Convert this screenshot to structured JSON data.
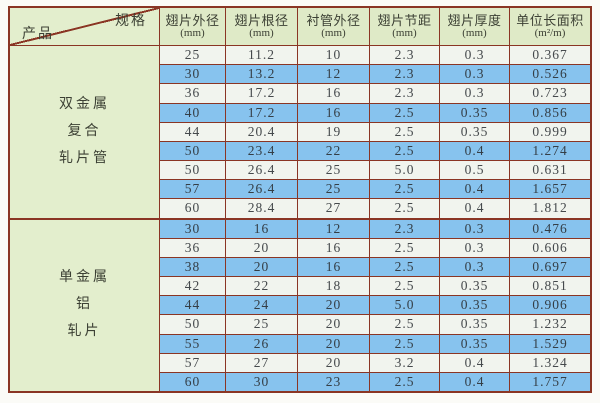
{
  "colors": {
    "border": "#8a3524",
    "header_bg": "#dfeac7",
    "product_bg": "#e3eecd",
    "row_blue": "#87c3ee",
    "row_white": "#f1f4ee"
  },
  "table": {
    "corner": {
      "spec": "规格",
      "product": "产品"
    },
    "columns": [
      {
        "title": "翅片外径",
        "unit": "(mm)"
      },
      {
        "title": "翅片根径",
        "unit": "(mm)"
      },
      {
        "title": "衬管外径",
        "unit": "(mm)"
      },
      {
        "title": "翅片节距",
        "unit": "(mm)"
      },
      {
        "title": "翅片厚度",
        "unit": "(mm)"
      },
      {
        "title": "单位长面积",
        "unit": "(m²/m)"
      }
    ],
    "groups": [
      {
        "product_lines": [
          "双金属",
          "复合",
          "轧片管"
        ],
        "rows": [
          [
            "25",
            "11.2",
            "10",
            "2.3",
            "0.3",
            "0.367"
          ],
          [
            "30",
            "13.2",
            "12",
            "2.3",
            "0.3",
            "0.526"
          ],
          [
            "36",
            "17.2",
            "16",
            "2.3",
            "0.3",
            "0.723"
          ],
          [
            "40",
            "17.2",
            "16",
            "2.5",
            "0.35",
            "0.856"
          ],
          [
            "44",
            "20.4",
            "19",
            "2.5",
            "0.35",
            "0.999"
          ],
          [
            "50",
            "23.4",
            "22",
            "2.5",
            "0.4",
            "1.274"
          ],
          [
            "50",
            "26.4",
            "25",
            "5.0",
            "0.5",
            "0.631"
          ],
          [
            "57",
            "26.4",
            "25",
            "2.5",
            "0.4",
            "1.657"
          ],
          [
            "60",
            "28.4",
            "27",
            "2.5",
            "0.4",
            "1.812"
          ]
        ]
      },
      {
        "product_lines": [
          "单金属",
          "铝",
          "轧片"
        ],
        "rows": [
          [
            "30",
            "16",
            "12",
            "2.3",
            "0.3",
            "0.476"
          ],
          [
            "36",
            "20",
            "16",
            "2.5",
            "0.3",
            "0.606"
          ],
          [
            "38",
            "20",
            "16",
            "2.5",
            "0.3",
            "0.697"
          ],
          [
            "42",
            "22",
            "18",
            "2.5",
            "0.35",
            "0.851"
          ],
          [
            "44",
            "24",
            "20",
            "5.0",
            "0.35",
            "0.906"
          ],
          [
            "50",
            "25",
            "20",
            "2.5",
            "0.35",
            "1.232"
          ],
          [
            "55",
            "26",
            "20",
            "2.5",
            "0.35",
            "1.529"
          ],
          [
            "57",
            "27",
            "20",
            "3.2",
            "0.4",
            "1.324"
          ],
          [
            "60",
            "30",
            "23",
            "2.5",
            "0.4",
            "1.757"
          ]
        ]
      }
    ]
  },
  "chart_data": {
    "type": "table",
    "title": "",
    "columns": [
      "产品",
      "翅片外径(mm)",
      "翅片根径(mm)",
      "衬管外径(mm)",
      "翅片节距(mm)",
      "翅片厚度(mm)",
      "单位长面积(m²/m)"
    ],
    "row_groups": [
      "双金属复合轧片管",
      "单金属铝轧片"
    ]
  }
}
